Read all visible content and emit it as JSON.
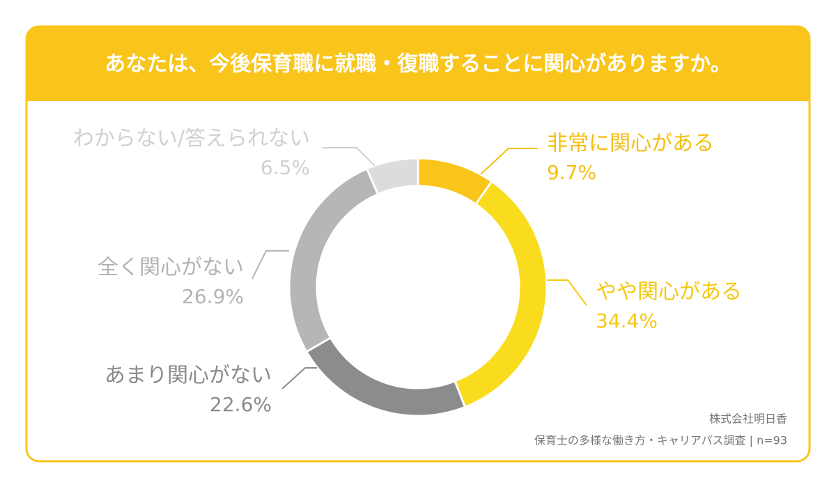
{
  "chart_data": {
    "type": "donut",
    "title": "あなたは、今後保育職に就職・復職することに関心がありますか。",
    "categories": [
      "非常に関心がある",
      "やや関心がある",
      "あまり関心がない",
      "全く関心がない",
      "わからない/答えられない"
    ],
    "values": [
      9.7,
      34.4,
      22.6,
      26.9,
      6.5
    ],
    "value_labels": [
      "9.7%",
      "34.4%",
      "22.6%",
      "26.9%",
      "6.5%"
    ],
    "colors": [
      "#f9c51b",
      "#fadc1e",
      "#8c8c8c",
      "#b6b6b6",
      "#dcdcdc"
    ],
    "label_colors": [
      "#f5bf10",
      "#f5c810",
      "#8a8a8a",
      "#b3b3b3",
      "#d0d0d0"
    ],
    "source": [
      "株式会社明日香",
      "保育士の多様な働き方・キャリアパス調査 | n=93"
    ]
  }
}
